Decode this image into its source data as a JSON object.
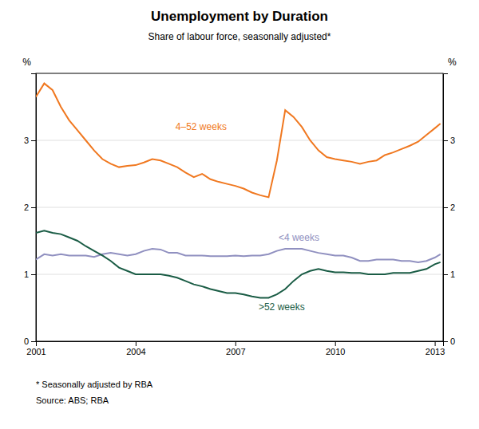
{
  "chart_data": {
    "type": "line",
    "title": "Unemployment by Duration",
    "subtitle": "Share of labour force, seasonally adjusted*",
    "footnotes": [
      "*    Seasonally adjusted by RBA",
      "Source: ABS; RBA"
    ],
    "ylabel": "%",
    "y2label": "%",
    "xlim": [
      2001.0,
      2013.25
    ],
    "xticks": [
      2001,
      2004,
      2007,
      2010,
      2013
    ],
    "ylim": [
      0,
      4.0
    ],
    "yticks": [
      0,
      1,
      2,
      3
    ],
    "y2lim": [
      0,
      4.0
    ],
    "y2ticks": [
      0,
      1,
      2,
      3
    ],
    "grid": true,
    "x": [
      2001.0,
      2001.25,
      2001.5,
      2001.75,
      2002.0,
      2002.25,
      2002.5,
      2002.75,
      2003.0,
      2003.25,
      2003.5,
      2003.75,
      2004.0,
      2004.25,
      2004.5,
      2004.75,
      2005.0,
      2005.25,
      2005.5,
      2005.75,
      2006.0,
      2006.25,
      2006.5,
      2006.75,
      2007.0,
      2007.25,
      2007.5,
      2007.75,
      2008.0,
      2008.25,
      2008.5,
      2008.75,
      2009.0,
      2009.25,
      2009.5,
      2009.75,
      2010.0,
      2010.25,
      2010.5,
      2010.75,
      2011.0,
      2011.25,
      2011.5,
      2011.75,
      2012.0,
      2012.25,
      2012.5,
      2012.75,
      2013.0,
      2013.17
    ],
    "series": [
      {
        "name": "4–52 weeks",
        "color": "#f07820",
        "label_x": 2005.2,
        "label_y": 3.2,
        "values": [
          3.65,
          3.85,
          3.75,
          3.5,
          3.3,
          3.15,
          3.0,
          2.85,
          2.72,
          2.65,
          2.6,
          2.62,
          2.63,
          2.67,
          2.72,
          2.7,
          2.65,
          2.6,
          2.52,
          2.45,
          2.5,
          2.42,
          2.38,
          2.35,
          2.32,
          2.28,
          2.22,
          2.18,
          2.15,
          2.7,
          3.45,
          3.35,
          3.2,
          3.0,
          2.85,
          2.75,
          2.72,
          2.7,
          2.68,
          2.65,
          2.68,
          2.7,
          2.78,
          2.82,
          2.87,
          2.92,
          2.98,
          3.08,
          3.18,
          3.25
        ]
      },
      {
        "name": "<4 weeks",
        "color": "#9090c0",
        "label_x": 2008.3,
        "label_y": 1.55,
        "values": [
          1.22,
          1.3,
          1.28,
          1.3,
          1.28,
          1.28,
          1.28,
          1.26,
          1.3,
          1.32,
          1.3,
          1.28,
          1.3,
          1.35,
          1.38,
          1.37,
          1.32,
          1.32,
          1.28,
          1.28,
          1.28,
          1.27,
          1.27,
          1.27,
          1.28,
          1.27,
          1.28,
          1.28,
          1.3,
          1.35,
          1.38,
          1.38,
          1.38,
          1.35,
          1.32,
          1.3,
          1.28,
          1.28,
          1.25,
          1.2,
          1.2,
          1.22,
          1.22,
          1.22,
          1.2,
          1.2,
          1.18,
          1.2,
          1.25,
          1.3
        ]
      },
      {
        "name": ">52 weeks",
        "color": "#1a5c45",
        "label_x": 2007.7,
        "label_y": 0.52,
        "values": [
          1.62,
          1.65,
          1.62,
          1.6,
          1.55,
          1.5,
          1.42,
          1.35,
          1.28,
          1.2,
          1.1,
          1.05,
          1.0,
          1.0,
          1.0,
          1.0,
          0.98,
          0.95,
          0.9,
          0.85,
          0.82,
          0.78,
          0.75,
          0.72,
          0.72,
          0.7,
          0.67,
          0.65,
          0.65,
          0.7,
          0.78,
          0.9,
          1.0,
          1.05,
          1.08,
          1.05,
          1.03,
          1.03,
          1.02,
          1.02,
          1.0,
          1.0,
          1.0,
          1.02,
          1.02,
          1.02,
          1.05,
          1.08,
          1.15,
          1.18
        ]
      }
    ]
  }
}
